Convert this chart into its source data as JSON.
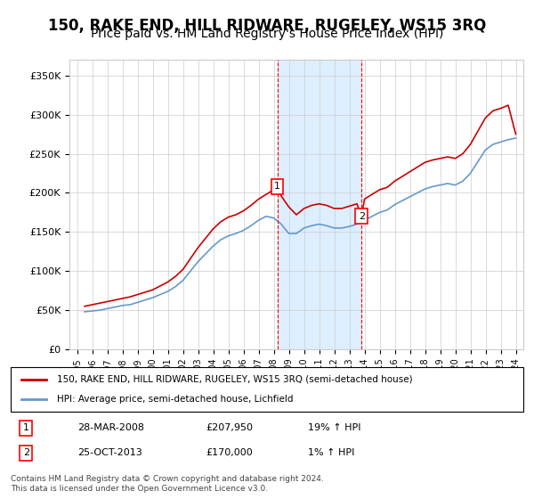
{
  "title": "150, RAKE END, HILL RIDWARE, RUGELEY, WS15 3RQ",
  "subtitle": "Price paid vs. HM Land Registry's House Price Index (HPI)",
  "ylabel_ticks": [
    "£0",
    "£50K",
    "£100K",
    "£150K",
    "£200K",
    "£250K",
    "£300K",
    "£350K"
  ],
  "ytick_values": [
    0,
    50000,
    100000,
    150000,
    200000,
    250000,
    300000,
    350000
  ],
  "ylim": [
    0,
    370000
  ],
  "xlim_start": 1995.0,
  "xlim_end": 2024.5,
  "marker1_x": 2008.24,
  "marker1_y": 207950,
  "marker2_x": 2013.81,
  "marker2_y": 170000,
  "legend_line1": "150, RAKE END, HILL RIDWARE, RUGELEY, WS15 3RQ (semi-detached house)",
  "legend_line2": "HPI: Average price, semi-detached house, Lichfield",
  "table_row1": [
    "1",
    "28-MAR-2008",
    "£207,950",
    "19% ↑ HPI"
  ],
  "table_row2": [
    "2",
    "25-OCT-2013",
    "£170,000",
    "1% ↑ HPI"
  ],
  "footer": "Contains HM Land Registry data © Crown copyright and database right 2024.\nThis data is licensed under the Open Government Licence v3.0.",
  "line_color_property": "#cc0000",
  "line_color_hpi": "#6699cc",
  "background_color": "#ffffff",
  "shaded_region_color": "#ddeeff",
  "grid_color": "#cccccc",
  "title_fontsize": 12,
  "subtitle_fontsize": 10,
  "hpi_data": {
    "years": [
      1995.5,
      1996.0,
      1996.5,
      1997.0,
      1997.5,
      1998.0,
      1998.5,
      1999.0,
      1999.5,
      2000.0,
      2000.5,
      2001.0,
      2001.5,
      2002.0,
      2002.5,
      2003.0,
      2003.5,
      2004.0,
      2004.5,
      2005.0,
      2005.5,
      2006.0,
      2006.5,
      2007.0,
      2007.5,
      2008.0,
      2008.5,
      2009.0,
      2009.5,
      2010.0,
      2010.5,
      2011.0,
      2011.5,
      2012.0,
      2012.5,
      2013.0,
      2013.5,
      2014.0,
      2014.5,
      2015.0,
      2015.5,
      2016.0,
      2016.5,
      2017.0,
      2017.5,
      2018.0,
      2018.5,
      2019.0,
      2019.5,
      2020.0,
      2020.5,
      2021.0,
      2021.5,
      2022.0,
      2022.5,
      2023.0,
      2023.5,
      2024.0
    ],
    "values": [
      48000,
      49000,
      50000,
      52000,
      54000,
      56000,
      57000,
      60000,
      63000,
      66000,
      70000,
      74000,
      80000,
      88000,
      100000,
      112000,
      122000,
      132000,
      140000,
      145000,
      148000,
      152000,
      158000,
      165000,
      170000,
      168000,
      160000,
      148000,
      148000,
      155000,
      158000,
      160000,
      158000,
      155000,
      155000,
      157000,
      160000,
      165000,
      170000,
      175000,
      178000,
      185000,
      190000,
      195000,
      200000,
      205000,
      208000,
      210000,
      212000,
      210000,
      215000,
      225000,
      240000,
      255000,
      262000,
      265000,
      268000,
      270000
    ]
  },
  "property_data": {
    "years": [
      1995.5,
      1996.0,
      1996.5,
      1997.0,
      1997.5,
      1998.0,
      1998.5,
      1999.0,
      1999.5,
      2000.0,
      2000.5,
      2001.0,
      2001.5,
      2002.0,
      2002.5,
      2003.0,
      2003.5,
      2004.0,
      2004.5,
      2005.0,
      2005.5,
      2006.0,
      2006.5,
      2007.0,
      2007.5,
      2008.0,
      2008.24,
      2008.5,
      2009.0,
      2009.5,
      2010.0,
      2010.5,
      2011.0,
      2011.5,
      2012.0,
      2012.5,
      2013.0,
      2013.5,
      2013.81,
      2014.0,
      2014.5,
      2015.0,
      2015.5,
      2016.0,
      2016.5,
      2017.0,
      2017.5,
      2018.0,
      2018.5,
      2019.0,
      2019.5,
      2020.0,
      2020.5,
      2021.0,
      2021.5,
      2022.0,
      2022.5,
      2023.0,
      2023.5,
      2024.0
    ],
    "values": [
      55000,
      57000,
      59000,
      61000,
      63000,
      65000,
      67000,
      70000,
      73000,
      76000,
      81000,
      86000,
      93000,
      102000,
      116000,
      130000,
      142000,
      154000,
      163000,
      169000,
      172000,
      177000,
      184000,
      192000,
      198000,
      204000,
      207950,
      196000,
      182000,
      172000,
      180000,
      184000,
      186000,
      184000,
      180000,
      180000,
      183000,
      186000,
      170000,
      192000,
      198000,
      204000,
      207000,
      215000,
      221000,
      227000,
      233000,
      239000,
      242000,
      244000,
      246000,
      244000,
      250000,
      262000,
      279000,
      296000,
      305000,
      308000,
      312000,
      275000
    ]
  }
}
